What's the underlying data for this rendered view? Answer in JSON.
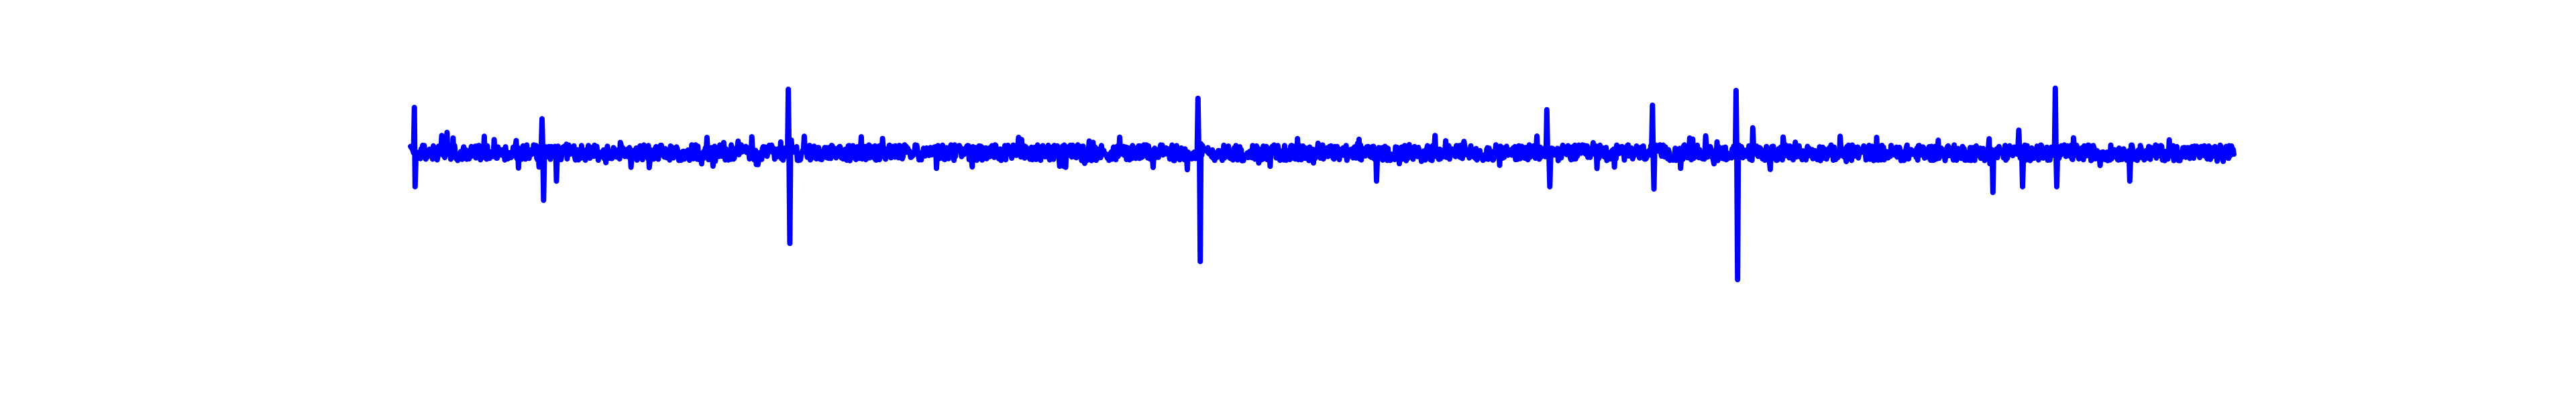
{
  "chart_data": {
    "type": "line",
    "title": "",
    "xlabel": "",
    "ylabel": "",
    "grid": false,
    "axes_visible": false,
    "x_range": [
      0,
      1000
    ],
    "ylim": [
      -1.1,
      1.1
    ],
    "series": [
      {
        "color": "#0000ff",
        "baseline_noise": 0.07,
        "spikes": [
          {
            "x": 2,
            "y": 0.4
          },
          {
            "x": 2.5,
            "y": -0.3
          },
          {
            "x": 20,
            "y": 0.18
          },
          {
            "x": 72,
            "y": 0.3
          },
          {
            "x": 73,
            "y": -0.42
          },
          {
            "x": 80,
            "y": -0.25
          },
          {
            "x": 207,
            "y": 0.56
          },
          {
            "x": 208,
            "y": -0.8
          },
          {
            "x": 432,
            "y": 0.48
          },
          {
            "x": 433,
            "y": -0.96
          },
          {
            "x": 530,
            "y": -0.25
          },
          {
            "x": 623,
            "y": 0.38
          },
          {
            "x": 625,
            "y": -0.3
          },
          {
            "x": 681,
            "y": 0.42
          },
          {
            "x": 682,
            "y": -0.32
          },
          {
            "x": 727,
            "y": 0.55
          },
          {
            "x": 728,
            "y": -1.12
          },
          {
            "x": 736,
            "y": 0.22
          },
          {
            "x": 868,
            "y": -0.35
          },
          {
            "x": 882,
            "y": 0.2
          },
          {
            "x": 884,
            "y": -0.3
          },
          {
            "x": 902,
            "y": 0.57
          },
          {
            "x": 903,
            "y": -0.3
          },
          {
            "x": 943,
            "y": -0.25
          }
        ]
      }
    ]
  }
}
